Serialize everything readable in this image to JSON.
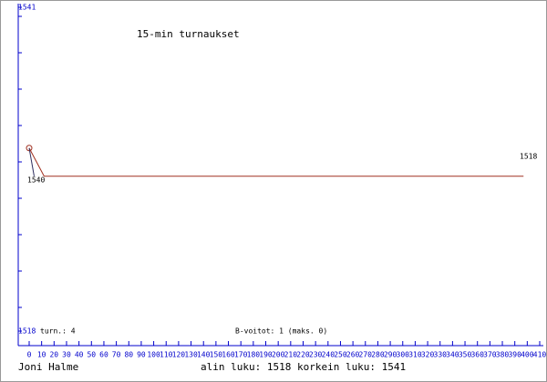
{
  "chart_data": {
    "type": "line",
    "title": "15-min turnaukset",
    "x": [
      0,
      12,
      397
    ],
    "series": [
      {
        "color": "#a03020",
        "values": [
          1531,
          1529,
          1529
        ]
      },
      {
        "color": "#303060",
        "x": [
          0,
          4
        ],
        "values": [
          1531,
          1529
        ]
      }
    ],
    "xlim": [
      0,
      410
    ],
    "ylim": [
      1518,
      1541
    ],
    "xticks": [
      0,
      10,
      20,
      30,
      40,
      50,
      60,
      70,
      80,
      90,
      100,
      110,
      120,
      130,
      140,
      150,
      160,
      170,
      180,
      190,
      200,
      210,
      220,
      230,
      240,
      250,
      260,
      270,
      280,
      290,
      300,
      310,
      320,
      330,
      340,
      350,
      360,
      370,
      380,
      390,
      400,
      410
    ],
    "yticks": [
      1518,
      1541
    ],
    "annotations": [
      "1540",
      "1518"
    ],
    "stats": [
      "turn.: 4",
      "B-voitot: 1 (maks. 0)"
    ],
    "footer": [
      "Joni Halme",
      "alin luku: 1518  korkein luku: 1541"
    ],
    "axis_color": "#0000cc"
  }
}
